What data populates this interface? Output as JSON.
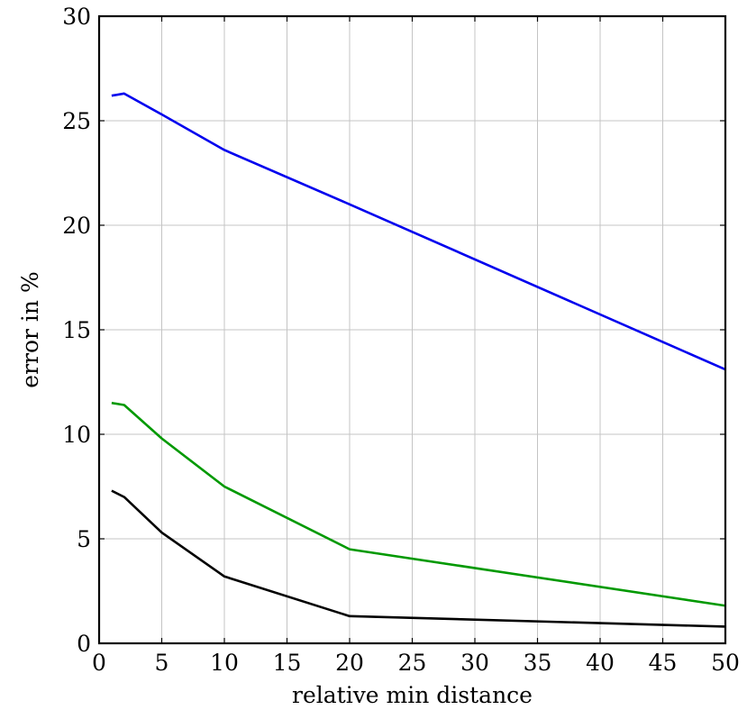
{
  "chart_data": {
    "type": "line",
    "title": "",
    "xlabel": "relative min distance",
    "ylabel": "error in %",
    "xlim": [
      0,
      50
    ],
    "ylim": [
      0,
      30
    ],
    "xticks": [
      0,
      5,
      10,
      15,
      20,
      25,
      30,
      35,
      40,
      45,
      50
    ],
    "yticks": [
      0,
      5,
      10,
      15,
      20,
      25,
      30
    ],
    "grid": true,
    "legend": "none",
    "series": [
      {
        "color": "#0000ee",
        "points": [
          [
            1,
            26.2
          ],
          [
            2,
            26.3
          ],
          [
            5,
            25.3
          ],
          [
            10,
            23.6
          ],
          [
            20,
            21.0
          ],
          [
            50,
            13.1
          ]
        ]
      },
      {
        "color": "#009900",
        "points": [
          [
            1,
            11.5
          ],
          [
            2,
            11.4
          ],
          [
            5,
            9.8
          ],
          [
            10,
            7.5
          ],
          [
            20,
            4.5
          ],
          [
            50,
            1.8
          ]
        ]
      },
      {
        "color": "#000000",
        "points": [
          [
            1,
            7.3
          ],
          [
            2,
            7.0
          ],
          [
            5,
            5.3
          ],
          [
            10,
            3.2
          ],
          [
            20,
            1.3
          ],
          [
            50,
            0.8
          ]
        ]
      }
    ]
  }
}
